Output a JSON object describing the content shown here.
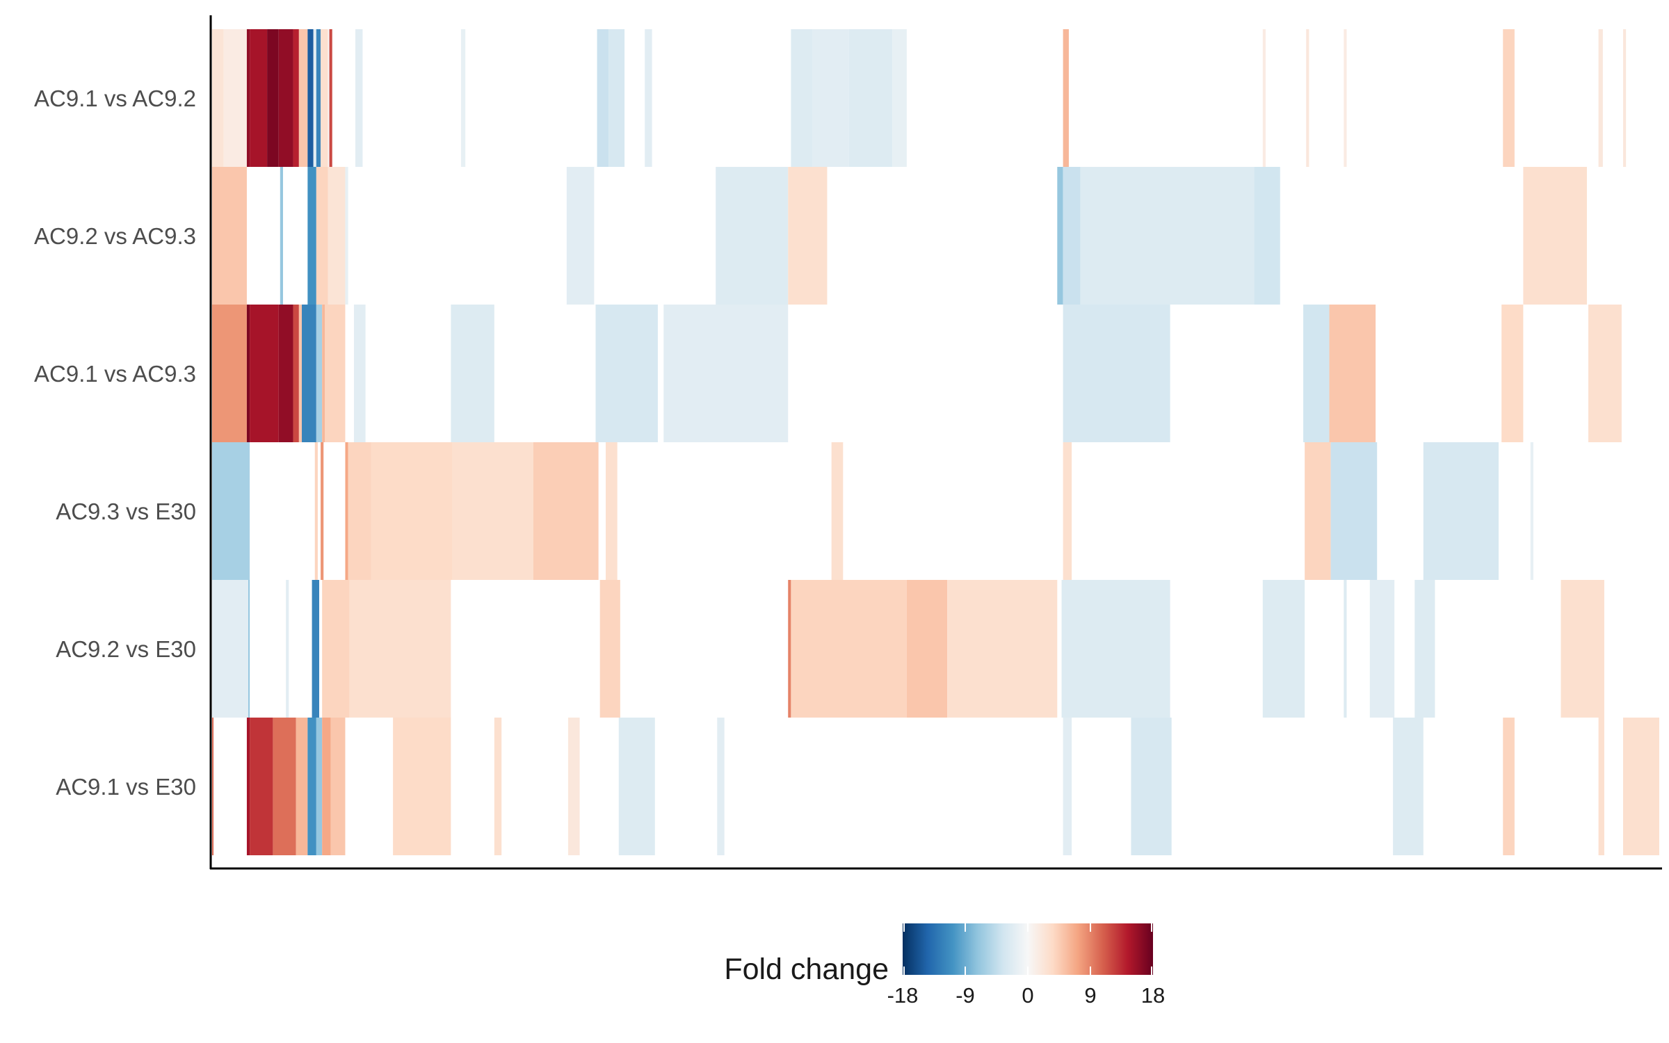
{
  "chart_data": {
    "type": "heatmap",
    "title": "",
    "xlabel": "",
    "ylabel": "",
    "rows": [
      "AC9.1 vs AC9.2",
      "AC9.2 vs AC9.3",
      "AC9.1 vs AC9.3",
      "AC9.3 vs E30",
      "AC9.2 vs E30",
      "AC9.1 vs E30"
    ],
    "n_columns": 1000,
    "column_axis_labels": false,
    "legend": {
      "title": "Fold change",
      "ticks": [
        -18,
        -9,
        0,
        9,
        18
      ],
      "tick_labels": [
        "-18",
        "-9",
        "0",
        "9",
        "18"
      ],
      "range": [
        -18,
        18
      ],
      "palette": [
        "#053061",
        "#2166ac",
        "#4393c3",
        "#92c5de",
        "#d1e5f0",
        "#f7f7f7",
        "#fddbc7",
        "#f4a582",
        "#d6604d",
        "#b2182b",
        "#67001f"
      ],
      "placement": "bottom"
    },
    "series": [
      {
        "name": "AC9.1 vs AC9.2",
        "segments": [
          {
            "from": 0,
            "to": 8,
            "value": 2.5
          },
          {
            "from": 8,
            "to": 24,
            "value": 1.5
          },
          {
            "from": 24,
            "to": 26,
            "value": 16
          },
          {
            "from": 26,
            "to": 38,
            "value": 15
          },
          {
            "from": 38,
            "to": 46,
            "value": 17
          },
          {
            "from": 46,
            "to": 56,
            "value": 16
          },
          {
            "from": 56,
            "to": 60,
            "value": 14
          },
          {
            "from": 60,
            "to": 66,
            "value": 5
          },
          {
            "from": 66,
            "to": 70,
            "value": -15
          },
          {
            "from": 70,
            "to": 72,
            "value": -2
          },
          {
            "from": 72,
            "to": 75,
            "value": -12
          },
          {
            "from": 75,
            "to": 80,
            "value": 3
          },
          {
            "from": 80,
            "to": 81,
            "value": 0
          },
          {
            "from": 81,
            "to": 83,
            "value": 12
          },
          {
            "from": 99,
            "to": 104,
            "value": -2
          },
          {
            "from": 172,
            "to": 175,
            "value": -1.5
          },
          {
            "from": 266,
            "to": 274,
            "value": -4
          },
          {
            "from": 274,
            "to": 285,
            "value": -3
          },
          {
            "from": 299,
            "to": 304,
            "value": -2
          },
          {
            "from": 400,
            "to": 415,
            "value": -2.5
          },
          {
            "from": 415,
            "to": 440,
            "value": -2
          },
          {
            "from": 440,
            "to": 470,
            "value": -2.5
          },
          {
            "from": 470,
            "to": 480,
            "value": -1.5
          },
          {
            "from": 588,
            "to": 592,
            "value": 6
          },
          {
            "from": 726,
            "to": 728,
            "value": 1.5
          },
          {
            "from": 756,
            "to": 758,
            "value": 2
          },
          {
            "from": 782,
            "to": 784,
            "value": 1.5
          },
          {
            "from": 892,
            "to": 900,
            "value": 4
          },
          {
            "from": 958,
            "to": 961,
            "value": 2
          },
          {
            "from": 975,
            "to": 977,
            "value": 2
          }
        ]
      },
      {
        "name": "AC9.2 vs AC9.3",
        "segments": [
          {
            "from": 0,
            "to": 24,
            "value": 5
          },
          {
            "from": 47,
            "to": 49,
            "value": -7
          },
          {
            "from": 66,
            "to": 72,
            "value": -11
          },
          {
            "from": 72,
            "to": 80,
            "value": 4
          },
          {
            "from": 80,
            "to": 92,
            "value": 2.5
          },
          {
            "from": 92,
            "to": 94,
            "value": -1.5
          },
          {
            "from": 245,
            "to": 264,
            "value": -2
          },
          {
            "from": 348,
            "to": 398,
            "value": -2.5
          },
          {
            "from": 398,
            "to": 425,
            "value": 3
          },
          {
            "from": 584,
            "to": 588,
            "value": -7
          },
          {
            "from": 588,
            "to": 600,
            "value": -4
          },
          {
            "from": 600,
            "to": 720,
            "value": -2.5
          },
          {
            "from": 720,
            "to": 738,
            "value": -3.5
          },
          {
            "from": 906,
            "to": 950,
            "value": 3
          }
        ]
      },
      {
        "name": "AC9.1 vs AC9.3",
        "segments": [
          {
            "from": 0,
            "to": 24,
            "value": 8
          },
          {
            "from": 24,
            "to": 26,
            "value": 17
          },
          {
            "from": 26,
            "to": 46,
            "value": 15
          },
          {
            "from": 46,
            "to": 56,
            "value": 16
          },
          {
            "from": 56,
            "to": 60,
            "value": 12
          },
          {
            "from": 60,
            "to": 62,
            "value": 5
          },
          {
            "from": 62,
            "to": 72,
            "value": -12
          },
          {
            "from": 72,
            "to": 76,
            "value": -6
          },
          {
            "from": 76,
            "to": 78,
            "value": 6
          },
          {
            "from": 78,
            "to": 92,
            "value": 4
          },
          {
            "from": 98,
            "to": 106,
            "value": -2
          },
          {
            "from": 165,
            "to": 195,
            "value": -2.5
          },
          {
            "from": 265,
            "to": 308,
            "value": -3
          },
          {
            "from": 312,
            "to": 398,
            "value": -2
          },
          {
            "from": 588,
            "to": 662,
            "value": -3
          },
          {
            "from": 754,
            "to": 772,
            "value": -3.5
          },
          {
            "from": 772,
            "to": 804,
            "value": 5
          },
          {
            "from": 891,
            "to": 906,
            "value": 3.5
          },
          {
            "from": 951,
            "to": 974,
            "value": 3
          }
        ]
      },
      {
        "name": "AC9.3 vs E30",
        "segments": [
          {
            "from": 0,
            "to": 26,
            "value": -6
          },
          {
            "from": 71,
            "to": 73,
            "value": 4
          },
          {
            "from": 75,
            "to": 77,
            "value": 8
          },
          {
            "from": 92,
            "to": 94,
            "value": 7
          },
          {
            "from": 94,
            "to": 110,
            "value": 4
          },
          {
            "from": 110,
            "to": 166,
            "value": 3.5
          },
          {
            "from": 166,
            "to": 222,
            "value": 3
          },
          {
            "from": 222,
            "to": 267,
            "value": 4.5
          },
          {
            "from": 272,
            "to": 280,
            "value": 3
          },
          {
            "from": 428,
            "to": 436,
            "value": 3
          },
          {
            "from": 588,
            "to": 594,
            "value": 3
          },
          {
            "from": 755,
            "to": 773,
            "value": 4
          },
          {
            "from": 773,
            "to": 805,
            "value": -4
          },
          {
            "from": 837,
            "to": 889,
            "value": -3
          },
          {
            "from": 911,
            "to": 913,
            "value": -1.5
          }
        ]
      },
      {
        "name": "AC9.2 vs E30",
        "segments": [
          {
            "from": 0,
            "to": 25,
            "value": -2
          },
          {
            "from": 25,
            "to": 26,
            "value": -7
          },
          {
            "from": 51,
            "to": 53,
            "value": -2
          },
          {
            "from": 69,
            "to": 74,
            "value": -12
          },
          {
            "from": 76,
            "to": 95,
            "value": 4
          },
          {
            "from": 95,
            "to": 165,
            "value": 3
          },
          {
            "from": 268,
            "to": 282,
            "value": 4
          },
          {
            "from": 398,
            "to": 400,
            "value": 9
          },
          {
            "from": 400,
            "to": 480,
            "value": 4
          },
          {
            "from": 480,
            "to": 508,
            "value": 5
          },
          {
            "from": 508,
            "to": 584,
            "value": 3
          },
          {
            "from": 587,
            "to": 662,
            "value": -2.5
          },
          {
            "from": 726,
            "to": 755,
            "value": -2.5
          },
          {
            "from": 782,
            "to": 784,
            "value": -2.5
          },
          {
            "from": 800,
            "to": 817,
            "value": -2
          },
          {
            "from": 831,
            "to": 845,
            "value": -2.5
          },
          {
            "from": 932,
            "to": 962,
            "value": 3
          }
        ]
      },
      {
        "name": "AC9.1 vs E30",
        "segments": [
          {
            "from": 0,
            "to": 1,
            "value": 10
          },
          {
            "from": 24,
            "to": 26,
            "value": 15
          },
          {
            "from": 26,
            "to": 42,
            "value": 13
          },
          {
            "from": 42,
            "to": 58,
            "value": 10
          },
          {
            "from": 58,
            "to": 66,
            "value": 6
          },
          {
            "from": 66,
            "to": 72,
            "value": -11
          },
          {
            "from": 72,
            "to": 76,
            "value": -7
          },
          {
            "from": 76,
            "to": 82,
            "value": 7
          },
          {
            "from": 82,
            "to": 92,
            "value": 5
          },
          {
            "from": 125,
            "to": 165,
            "value": 3.5
          },
          {
            "from": 195,
            "to": 200,
            "value": 3
          },
          {
            "from": 246,
            "to": 254,
            "value": 2
          },
          {
            "from": 281,
            "to": 306,
            "value": -2.5
          },
          {
            "from": 349,
            "to": 354,
            "value": -2
          },
          {
            "from": 588,
            "to": 594,
            "value": -2
          },
          {
            "from": 635,
            "to": 663,
            "value": -3
          },
          {
            "from": 816,
            "to": 837,
            "value": -2.5
          },
          {
            "from": 892,
            "to": 900,
            "value": 4
          },
          {
            "from": 958,
            "to": 962,
            "value": 3
          },
          {
            "from": 975,
            "to": 1000,
            "value": 3
          }
        ]
      }
    ]
  }
}
